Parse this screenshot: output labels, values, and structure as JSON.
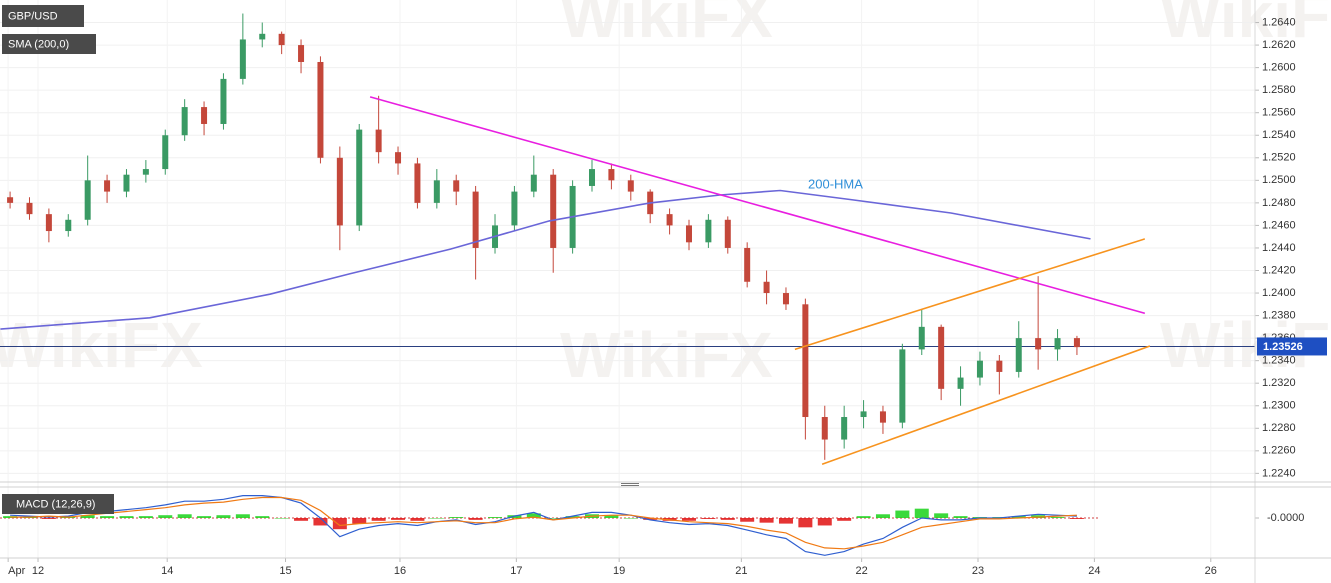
{
  "watermark": "WikiFX",
  "chart_data": [
    {
      "type": "candlestick",
      "title": "GBP/USD",
      "indicator": "SMA (200,0)",
      "up_color": "#3a9a64",
      "down_color": "#c4473a",
      "open": [
        1.2485,
        1.248,
        1.247,
        1.2455,
        1.2465,
        1.25,
        1.249,
        1.2505,
        1.251,
        1.254,
        1.2565,
        1.255,
        1.259,
        1.2625,
        1.263,
        1.262,
        1.2605,
        1.252,
        1.246,
        1.2545,
        1.2525,
        1.2515,
        1.248,
        1.25,
        1.249,
        1.244,
        1.246,
        1.249,
        1.2505,
        1.244,
        1.2495,
        1.251,
        1.25,
        1.249,
        1.247,
        1.246,
        1.2445,
        1.2465,
        1.244,
        1.241,
        1.24,
        1.239,
        1.229,
        1.227,
        1.229,
        1.2295,
        1.2285,
        1.235,
        1.237,
        1.2315,
        1.2325,
        1.234,
        1.233,
        1.236,
        1.235,
        1.236
      ],
      "high": [
        1.249,
        1.2485,
        1.2475,
        1.247,
        1.2522,
        1.2505,
        1.251,
        1.2518,
        1.2545,
        1.2572,
        1.257,
        1.2595,
        1.2648,
        1.264,
        1.2632,
        1.2625,
        1.261,
        1.253,
        1.255,
        1.2575,
        1.253,
        1.252,
        1.251,
        1.2505,
        1.2495,
        1.247,
        1.2495,
        1.2522,
        1.251,
        1.25,
        1.2518,
        1.2515,
        1.2505,
        1.2492,
        1.2475,
        1.2465,
        1.247,
        1.2468,
        1.2445,
        1.242,
        1.2405,
        1.2395,
        1.23,
        1.23,
        1.2305,
        1.23,
        1.2355,
        1.2385,
        1.2372,
        1.2335,
        1.2348,
        1.2345,
        1.2375,
        1.2415,
        1.2368,
        1.2362
      ],
      "low": [
        1.2475,
        1.2465,
        1.2445,
        1.245,
        1.246,
        1.248,
        1.2485,
        1.2498,
        1.2505,
        1.2535,
        1.254,
        1.2545,
        1.2585,
        1.2618,
        1.2612,
        1.2595,
        1.2515,
        1.2438,
        1.2455,
        1.2515,
        1.2505,
        1.2475,
        1.2475,
        1.2478,
        1.2412,
        1.2435,
        1.2455,
        1.2485,
        1.2418,
        1.2435,
        1.249,
        1.2492,
        1.2482,
        1.2462,
        1.2452,
        1.2438,
        1.244,
        1.2435,
        1.2405,
        1.239,
        1.2385,
        1.227,
        1.2252,
        1.2262,
        1.228,
        1.2275,
        1.228,
        1.2345,
        1.2305,
        1.23,
        1.2318,
        1.231,
        1.2325,
        1.2332,
        1.234,
        1.2345
      ],
      "close": [
        1.248,
        1.247,
        1.2455,
        1.2465,
        1.25,
        1.249,
        1.2505,
        1.251,
        1.254,
        1.2565,
        1.255,
        1.259,
        1.2625,
        1.263,
        1.262,
        1.2605,
        1.252,
        1.246,
        1.2545,
        1.2525,
        1.2515,
        1.248,
        1.25,
        1.249,
        1.244,
        1.246,
        1.249,
        1.2505,
        1.244,
        1.2495,
        1.251,
        1.25,
        1.249,
        1.247,
        1.246,
        1.2445,
        1.2465,
        1.244,
        1.241,
        1.24,
        1.239,
        1.229,
        1.227,
        1.229,
        1.2295,
        1.2285,
        1.235,
        1.237,
        1.2315,
        1.2325,
        1.234,
        1.233,
        1.236,
        1.235,
        1.236,
        1.2352
      ],
      "lines": [
        {
          "name": "200-HMA",
          "color": "#6a66d8",
          "x": [
            -0.5,
            7.2,
            13.4,
            17.5,
            22.7,
            27.8,
            33,
            36.6,
            39.7,
            43.3,
            48.5,
            55.7
          ],
          "values": [
            1.2368,
            1.2378,
            1.2399,
            1.2417,
            1.2439,
            1.2464,
            1.248,
            1.2487,
            1.2491,
            1.2483,
            1.2471,
            1.2448
          ]
        },
        {
          "color": "#e81ee0",
          "x": [
            18.56,
            58.5
          ],
          "values": [
            1.2574,
            1.2382
          ]
        },
        {
          "color": "#f7931e",
          "x": [
            40.46,
            58.5
          ],
          "values": [
            1.235,
            1.2448
          ]
        },
        {
          "color": "#f7931e",
          "x": [
            41.86,
            58.76
          ],
          "values": [
            1.2248,
            1.2353
          ]
        }
      ],
      "last_price": 1.23526,
      "last_price_color": "#1e4fc2",
      "xlim": [
        -0.52,
        64.18
      ],
      "ylim": [
        1.2235,
        1.266
      ],
      "xticks": [
        {
          "value": -0.1,
          "label": "Apr"
        },
        {
          "value": 1.44,
          "label": "12"
        },
        {
          "value": 8.1,
          "label": "14"
        },
        {
          "value": 14.2,
          "label": "15"
        },
        {
          "value": 20.1,
          "label": "16"
        },
        {
          "value": 26.1,
          "label": "17"
        },
        {
          "value": 31.4,
          "label": "19"
        },
        {
          "value": 37.7,
          "label": "21"
        },
        {
          "value": 43.9,
          "label": "22"
        },
        {
          "value": 49.9,
          "label": "23"
        },
        {
          "value": 55.9,
          "label": "24"
        },
        {
          "value": 61.9,
          "label": "26"
        }
      ],
      "yticks": [
        {
          "value": 1.224,
          "label": "1.2240"
        },
        {
          "value": 1.226,
          "label": "1.2260"
        },
        {
          "value": 1.228,
          "label": "1.2280"
        },
        {
          "value": 1.23,
          "label": "1.2300"
        },
        {
          "value": 1.232,
          "label": "1.2320"
        },
        {
          "value": 1.234,
          "label": "1.2340"
        },
        {
          "value": 1.236,
          "label": "1.2360"
        },
        {
          "value": 1.238,
          "label": "1.2380"
        },
        {
          "value": 1.24,
          "label": "1.2400"
        },
        {
          "value": 1.242,
          "label": "1.2420"
        },
        {
          "value": 1.244,
          "label": "1.2440"
        },
        {
          "value": 1.246,
          "label": "1.2460"
        },
        {
          "value": 1.248,
          "label": "1.2480"
        },
        {
          "value": 1.25,
          "label": "1.2500"
        },
        {
          "value": 1.252,
          "label": "1.2520"
        },
        {
          "value": 1.254,
          "label": "1.2540"
        },
        {
          "value": 1.256,
          "label": "1.2560"
        },
        {
          "value": 1.258,
          "label": "1.2580"
        },
        {
          "value": 1.26,
          "label": "1.2600"
        },
        {
          "value": 1.262,
          "label": "1.2620"
        },
        {
          "value": 1.264,
          "label": "1.2640"
        }
      ],
      "grid": true
    },
    {
      "type": "macd",
      "title": "MACD (12,26,9)",
      "hist_up_color": "#19d219",
      "hist_down_color": "#e01010",
      "histogram": [
        0.0002,
        0.0001,
        -0.0001,
        0.0001,
        0.0003,
        0.0002,
        0.0002,
        0.0002,
        0.0003,
        0.0004,
        0.0002,
        0.0003,
        0.0004,
        0.0002,
        0.0,
        -0.0003,
        -0.0008,
        -0.0012,
        -0.0006,
        -0.0003,
        -0.0002,
        -0.0003,
        0.0,
        0.0001,
        -0.0002,
        0.0001,
        0.0003,
        0.0005,
        0.0,
        0.0002,
        0.0004,
        0.0003,
        0.0,
        -0.0002,
        -0.0003,
        -0.0003,
        -0.0001,
        -0.0002,
        -0.0004,
        -0.0005,
        -0.0006,
        -0.001,
        -0.0008,
        -0.0003,
        0.0002,
        0.0004,
        0.0008,
        0.001,
        0.0005,
        0.0002,
        0.0001,
        0.0001,
        0.0002,
        0.0003,
        0.0001,
        -0.0001
      ],
      "series": [
        {
          "color": "#2f5fd0",
          "values": [
            0.0003,
            0.0002,
            0.0001,
            0.0002,
            0.0006,
            0.0007,
            0.0009,
            0.0011,
            0.0014,
            0.0018,
            0.0018,
            0.002,
            0.0024,
            0.0024,
            0.0022,
            0.0016,
            0.0,
            -0.002,
            -0.0012,
            -0.0008,
            -0.0006,
            -0.0008,
            -0.0004,
            -0.0002,
            -0.0007,
            -0.0004,
            0.0002,
            0.0006,
            -0.0002,
            0.0002,
            0.0006,
            0.0006,
            0.0003,
            -0.0002,
            -0.0005,
            -0.0007,
            -0.0006,
            -0.0008,
            -0.0013,
            -0.0018,
            -0.0022,
            -0.0036,
            -0.004,
            -0.0036,
            -0.0028,
            -0.0022,
            -0.001,
            0.0,
            -0.0002,
            -0.0002,
            0.0,
            0.0,
            0.0002,
            0.0004,
            0.0003,
            0.0002
          ]
        },
        {
          "color": "#f07a14",
          "values": [
            0.0001,
            0.0001,
            0.0002,
            0.0001,
            0.0003,
            0.0005,
            0.0007,
            0.0009,
            0.0011,
            0.0014,
            0.0016,
            0.0017,
            0.002,
            0.0022,
            0.0022,
            0.0019,
            0.0008,
            -0.0008,
            -0.0006,
            -0.0005,
            -0.0004,
            -0.0005,
            -0.0004,
            -0.0003,
            -0.0005,
            -0.0005,
            -0.0001,
            0.0001,
            -0.0002,
            0.0,
            0.0002,
            0.0003,
            0.0003,
            0.0,
            -0.0002,
            -0.0004,
            -0.0005,
            -0.0006,
            -0.0009,
            -0.0013,
            -0.0016,
            -0.0026,
            -0.0032,
            -0.0033,
            -0.003,
            -0.0026,
            -0.0018,
            -0.001,
            -0.0007,
            -0.0004,
            -0.0001,
            -0.0001,
            0.0,
            0.0001,
            0.0002,
            0.0003
          ]
        }
      ],
      "ylim": [
        -0.0045,
        0.003
      ],
      "yticks": [
        {
          "value": 0,
          "label": "-0.0000"
        }
      ]
    }
  ]
}
